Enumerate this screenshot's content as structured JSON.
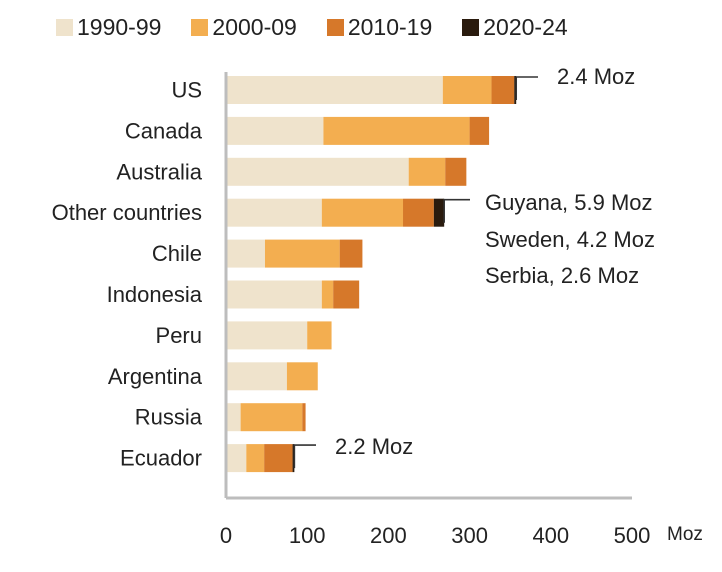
{
  "chart_data": {
    "type": "bar",
    "orientation": "horizontal",
    "stacked": true,
    "categories": [
      "US",
      "Canada",
      "Australia",
      "Other countries",
      "Chile",
      "Indonesia",
      "Peru",
      "Argentina",
      "Russia",
      "Ecuador"
    ],
    "series": [
      {
        "name": "1990-99",
        "color": "#efe3cc",
        "values": [
          267,
          120,
          225,
          118,
          48,
          118,
          100,
          75,
          18,
          25
        ]
      },
      {
        "name": "2000-09",
        "color": "#f3ae50",
        "values": [
          60,
          180,
          45,
          100,
          92,
          14,
          30,
          38,
          76,
          22
        ]
      },
      {
        "name": "2010-19",
        "color": "#d6782a",
        "values": [
          28,
          24,
          26,
          38,
          28,
          32,
          0,
          0,
          4,
          35
        ]
      },
      {
        "name": "2020-24",
        "color": "#2a1b0e",
        "values": [
          2.4,
          0,
          0,
          12.7,
          0,
          0,
          0,
          0,
          0,
          2.2
        ]
      }
    ],
    "xlim": [
      0,
      500
    ],
    "xticks": [
      0,
      100,
      200,
      300,
      400,
      500
    ],
    "x_unit": "Moz",
    "legend": "top",
    "grid": false,
    "annotations": [
      {
        "category": "US",
        "text": "2.4 Moz"
      },
      {
        "category": "Other countries",
        "lines": [
          "Guyana, 5.9 Moz",
          "Sweden, 4.2 Moz",
          "Serbia, 2.6 Moz"
        ]
      },
      {
        "category": "Ecuador",
        "text": "2.2 Moz"
      }
    ]
  }
}
